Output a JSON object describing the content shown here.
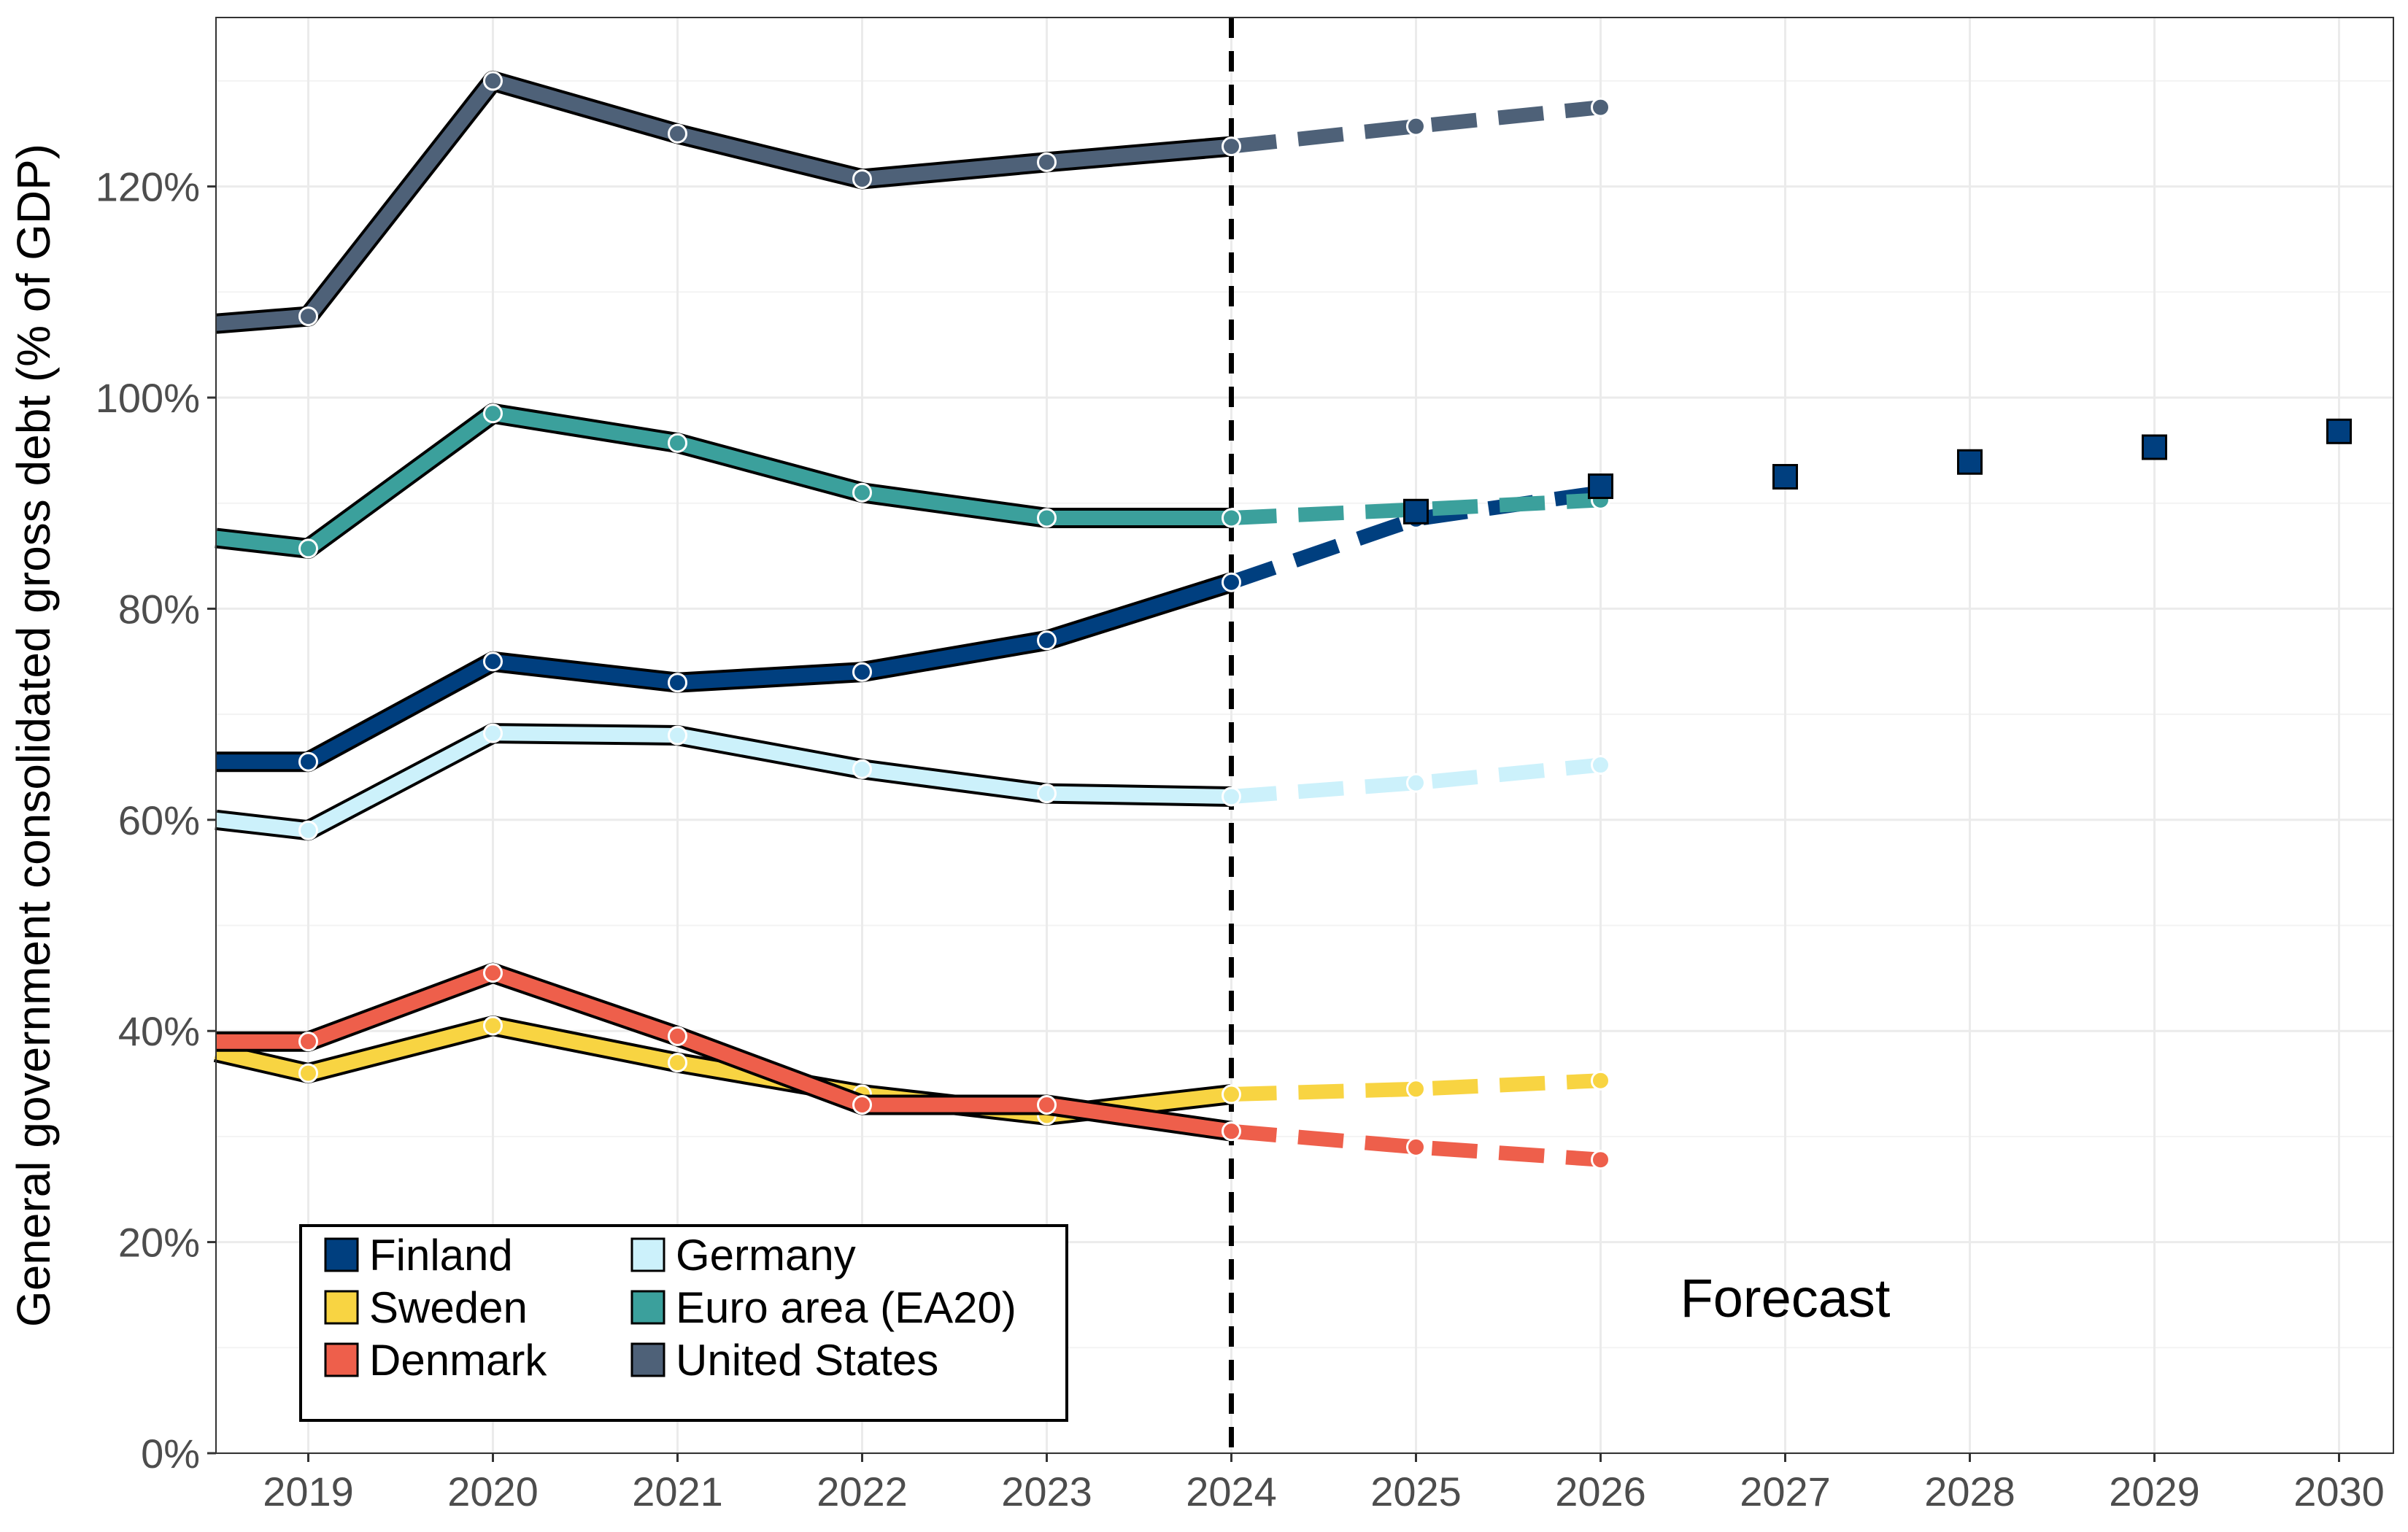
{
  "chart_data": {
    "type": "line",
    "title": "",
    "xlabel": "",
    "ylabel": "General government consolidated gross debt (% of GDP)",
    "xlim": [
      2018.5,
      2030.2
    ],
    "ylim": [
      0,
      137
    ],
    "x_ticks": [
      2019,
      2020,
      2021,
      2022,
      2023,
      2024,
      2025,
      2026,
      2027,
      2028,
      2029,
      2030
    ],
    "x_tick_labels": [
      "2019",
      "2020",
      "2021",
      "2022",
      "2023",
      "2024",
      "2025",
      "2026",
      "2027",
      "2028",
      "2029",
      "2030"
    ],
    "y_ticks": [
      0,
      20,
      40,
      60,
      80,
      100,
      120
    ],
    "y_tick_labels": [
      "0%",
      "20%",
      "40%",
      "60%",
      "80%",
      "100%",
      "120%"
    ],
    "forecast_divider_x": 2024,
    "annotation": "Forecast",
    "legend_position": "bottom-left",
    "series": [
      {
        "name": "Finland",
        "color": "#003f7f",
        "actual": {
          "x": [
            2018.5,
            2019,
            2020,
            2021,
            2022,
            2023,
            2024
          ],
          "y": [
            65.5,
            65.5,
            75.0,
            73.0,
            74.0,
            77.0,
            82.5
          ]
        },
        "forecast": {
          "x": [
            2024,
            2025,
            2026
          ],
          "y": [
            82.5,
            88.5,
            91.0
          ]
        }
      },
      {
        "name": "Sweden",
        "color": "#f8d442",
        "actual": {
          "x": [
            2018.5,
            2019,
            2020,
            2021,
            2022,
            2023,
            2024
          ],
          "y": [
            38.0,
            36.0,
            40.5,
            37.0,
            34.0,
            32.0,
            34.0
          ]
        },
        "forecast": {
          "x": [
            2024,
            2025,
            2026
          ],
          "y": [
            34.0,
            34.5,
            35.3
          ]
        }
      },
      {
        "name": "Denmark",
        "color": "#ee5f4b",
        "actual": {
          "x": [
            2018.5,
            2019,
            2020,
            2021,
            2022,
            2023,
            2024
          ],
          "y": [
            39.0,
            39.0,
            45.5,
            39.5,
            33.0,
            33.0,
            30.5
          ]
        },
        "forecast": {
          "x": [
            2024,
            2025,
            2026
          ],
          "y": [
            30.5,
            29.0,
            27.8
          ]
        }
      },
      {
        "name": "Germany",
        "color": "#ccf1fb",
        "actual": {
          "x": [
            2018.5,
            2019,
            2020,
            2021,
            2022,
            2023,
            2024
          ],
          "y": [
            60.0,
            59.0,
            68.2,
            68.0,
            64.8,
            62.5,
            62.2
          ]
        },
        "forecast": {
          "x": [
            2024,
            2025,
            2026
          ],
          "y": [
            62.2,
            63.5,
            65.2
          ]
        }
      },
      {
        "name": "Euro area (EA20)",
        "color": "#3ba09c",
        "actual": {
          "x": [
            2018.5,
            2019,
            2020,
            2021,
            2022,
            2023,
            2024
          ],
          "y": [
            86.7,
            85.7,
            98.5,
            95.7,
            91.0,
            88.6,
            88.6
          ]
        },
        "forecast": {
          "x": [
            2024,
            2025,
            2026
          ],
          "y": [
            88.6,
            89.4,
            90.3
          ]
        }
      },
      {
        "name": "United States",
        "color": "#4e6178",
        "actual": {
          "x": [
            2018.5,
            2019,
            2020,
            2021,
            2022,
            2023,
            2024
          ],
          "y": [
            107.0,
            107.7,
            130.0,
            125.0,
            120.7,
            122.3,
            123.8
          ]
        },
        "forecast": {
          "x": [
            2024,
            2025,
            2026
          ],
          "y": [
            123.8,
            125.7,
            127.5
          ]
        }
      }
    ],
    "finland_extension": {
      "name": "Finland",
      "marker": "square",
      "color": "#003f7f",
      "x": [
        2025,
        2026,
        2027,
        2028,
        2029,
        2030
      ],
      "y": [
        89.2,
        91.6,
        92.5,
        93.9,
        95.3,
        96.8
      ]
    }
  }
}
